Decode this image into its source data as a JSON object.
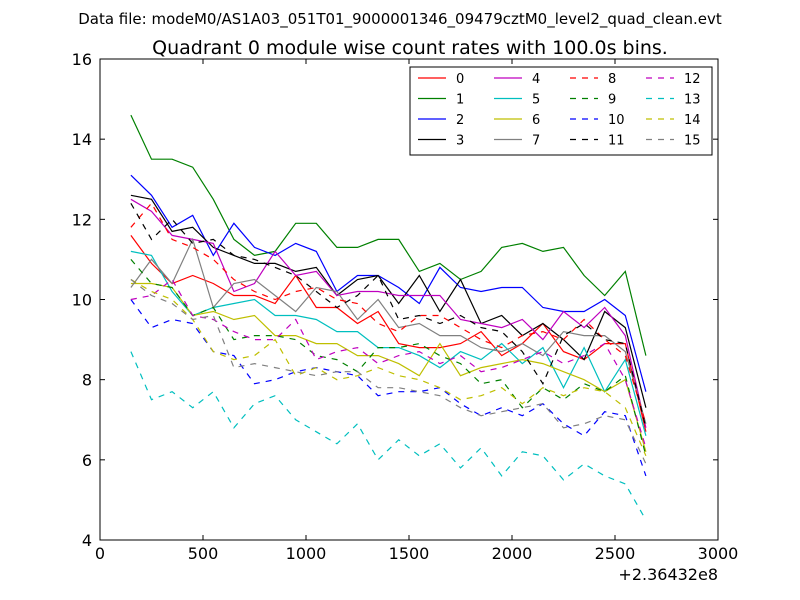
{
  "figure": {
    "suptitle": "Data file: modeM0/AS1A03_051T01_9000001346_09479cztM0_level2_quad_clean.evt"
  },
  "chart_data": {
    "type": "line",
    "title": "Quadrant 0 module wise count rates with 100.0s bins.",
    "xlabel": "",
    "ylabel": "",
    "x_offset_label": "+2.36432e8",
    "xlim": [
      0,
      3000
    ],
    "ylim": [
      4,
      16
    ],
    "xticks": [
      0,
      500,
      1000,
      1500,
      2000,
      2500,
      3000
    ],
    "yticks": [
      4,
      6,
      8,
      10,
      12,
      14,
      16
    ],
    "grid": false,
    "legend_position": "top-right",
    "x": [
      150,
      250,
      350,
      450,
      550,
      650,
      750,
      850,
      950,
      1050,
      1150,
      1250,
      1350,
      1450,
      1550,
      1650,
      1750,
      1850,
      1950,
      2050,
      2150,
      2250,
      2350,
      2450,
      2550,
      2650
    ],
    "series": [
      {
        "name": "0",
        "color": "#ff0000",
        "dash": "solid",
        "values": [
          11.6,
          10.9,
          10.4,
          10.6,
          10.4,
          10.1,
          10.1,
          9.9,
          10.6,
          9.8,
          9.8,
          9.4,
          9.7,
          8.9,
          8.8,
          8.8,
          8.9,
          9.2,
          8.6,
          8.9,
          9.4,
          8.7,
          8.5,
          8.9,
          8.9,
          6.7
        ]
      },
      {
        "name": "1",
        "color": "#008000",
        "dash": "solid",
        "values": [
          14.6,
          13.5,
          13.5,
          13.3,
          12.5,
          11.5,
          11.1,
          11.2,
          11.9,
          11.9,
          11.3,
          11.3,
          11.5,
          11.5,
          10.7,
          10.9,
          10.5,
          10.7,
          11.3,
          11.4,
          11.2,
          11.3,
          10.6,
          10.1,
          10.7,
          8.6
        ]
      },
      {
        "name": "2",
        "color": "#0000ff",
        "dash": "solid",
        "values": [
          13.1,
          12.6,
          11.8,
          12.1,
          11.1,
          11.9,
          11.3,
          11.1,
          11.4,
          11.2,
          10.2,
          10.6,
          10.6,
          10.3,
          9.9,
          10.8,
          10.3,
          10.2,
          10.3,
          10.3,
          9.8,
          9.7,
          9.7,
          10.0,
          9.6,
          7.7
        ]
      },
      {
        "name": "3",
        "color": "#000000",
        "dash": "solid",
        "values": [
          12.6,
          12.5,
          11.7,
          11.8,
          11.3,
          11.1,
          10.9,
          10.9,
          10.7,
          10.8,
          10.1,
          10.5,
          10.6,
          9.9,
          10.6,
          9.7,
          10.5,
          9.4,
          9.6,
          9.1,
          9.4,
          9.0,
          8.5,
          9.7,
          9.3,
          7.3
        ]
      },
      {
        "name": "4",
        "color": "#bf00bf",
        "dash": "solid",
        "values": [
          12.5,
          12.2,
          11.6,
          11.5,
          11.4,
          10.2,
          10.4,
          11.2,
          10.6,
          10.7,
          10.1,
          10.2,
          10.2,
          10.1,
          10.1,
          10.1,
          9.5,
          9.4,
          9.3,
          9.5,
          9.0,
          9.7,
          9.3,
          9.8,
          9.1,
          6.8
        ]
      },
      {
        "name": "5",
        "color": "#00bfbf",
        "dash": "solid",
        "values": [
          11.2,
          11.1,
          10.2,
          9.6,
          9.8,
          9.9,
          10.0,
          9.6,
          9.6,
          9.5,
          9.2,
          9.2,
          8.8,
          8.8,
          8.6,
          8.3,
          8.7,
          8.5,
          8.9,
          8.4,
          8.8,
          7.8,
          8.8,
          7.7,
          8.5,
          6.6
        ]
      },
      {
        "name": "6",
        "color": "#bfbf00",
        "dash": "solid",
        "values": [
          10.4,
          10.4,
          10.3,
          9.6,
          9.7,
          9.5,
          9.6,
          9.1,
          9.1,
          8.9,
          8.9,
          8.6,
          8.6,
          8.4,
          8.1,
          8.9,
          8.1,
          8.3,
          8.4,
          8.5,
          8.4,
          8.2,
          8.0,
          7.7,
          8.0,
          6.2
        ]
      },
      {
        "name": "7",
        "color": "#808080",
        "dash": "solid",
        "values": [
          10.3,
          11.0,
          10.4,
          11.5,
          9.8,
          10.4,
          10.5,
          10.1,
          9.7,
          10.3,
          10.2,
          9.5,
          10.0,
          9.3,
          9.4,
          9.1,
          9.1,
          8.8,
          8.7,
          8.9,
          8.6,
          9.2,
          9.1,
          9.1,
          8.7,
          6.9
        ]
      },
      {
        "name": "8",
        "color": "#ff0000",
        "dash": "dashed",
        "values": [
          11.8,
          12.4,
          11.5,
          11.3,
          11.0,
          10.5,
          10.2,
          10.0,
          10.2,
          10.3,
          10.0,
          9.9,
          9.4,
          9.2,
          9.6,
          9.6,
          9.3,
          9.0,
          8.8,
          9.1,
          9.2,
          9.0,
          9.5,
          9.0,
          8.6,
          6.9
        ]
      },
      {
        "name": "9",
        "color": "#008000",
        "dash": "dashed",
        "values": [
          11.0,
          10.4,
          10.3,
          9.6,
          9.8,
          9.0,
          9.1,
          9.1,
          9.0,
          8.6,
          8.5,
          8.2,
          8.8,
          8.8,
          8.9,
          8.6,
          8.4,
          7.9,
          8.0,
          7.3,
          7.8,
          7.5,
          7.9,
          7.7,
          8.1,
          6.1
        ]
      },
      {
        "name": "10",
        "color": "#0000ff",
        "dash": "dashed",
        "values": [
          10.0,
          9.3,
          9.5,
          9.4,
          8.7,
          8.6,
          7.9,
          8.0,
          8.2,
          8.3,
          8.2,
          8.1,
          7.6,
          7.7,
          7.7,
          7.8,
          7.4,
          7.1,
          7.3,
          7.1,
          7.4,
          6.9,
          6.6,
          7.2,
          7.1,
          5.6
        ]
      },
      {
        "name": "11",
        "color": "#000000",
        "dash": "dashed",
        "values": [
          12.4,
          11.5,
          12.0,
          11.4,
          11.5,
          11.1,
          11.0,
          10.8,
          10.6,
          10.2,
          9.8,
          10.1,
          10.6,
          9.5,
          9.6,
          9.4,
          9.6,
          9.3,
          9.2,
          8.7,
          7.9,
          9.1,
          9.4,
          9.0,
          8.9,
          6.8
        ]
      },
      {
        "name": "12",
        "color": "#bf00bf",
        "dash": "dashed",
        "values": [
          10.0,
          10.1,
          10.5,
          9.6,
          9.5,
          9.2,
          9.0,
          9.0,
          9.5,
          8.5,
          8.7,
          8.8,
          8.4,
          8.6,
          8.7,
          8.4,
          8.6,
          8.2,
          8.3,
          8.5,
          8.7,
          8.4,
          8.6,
          8.9,
          8.0,
          6.3
        ]
      },
      {
        "name": "13",
        "color": "#00bfbf",
        "dash": "dashed",
        "values": [
          8.7,
          7.5,
          7.7,
          7.3,
          7.7,
          6.8,
          7.4,
          7.6,
          7.0,
          6.7,
          6.4,
          6.9,
          6.0,
          6.5,
          6.1,
          6.4,
          5.8,
          6.3,
          5.6,
          6.2,
          6.1,
          5.5,
          5.9,
          5.6,
          5.4,
          4.5
        ]
      },
      {
        "name": "14",
        "color": "#bfbf00",
        "dash": "dashed",
        "values": [
          10.5,
          10.2,
          10.0,
          9.5,
          8.7,
          8.5,
          8.6,
          9.0,
          8.1,
          8.3,
          8.0,
          8.1,
          8.3,
          8.1,
          8.0,
          7.8,
          7.5,
          7.6,
          7.8,
          7.4,
          7.8,
          7.6,
          7.8,
          7.7,
          7.3,
          6.1
        ]
      },
      {
        "name": "15",
        "color": "#808080",
        "dash": "dashed",
        "values": [
          10.5,
          10.1,
          9.9,
          9.5,
          9.6,
          8.3,
          8.4,
          8.3,
          8.2,
          8.1,
          8.2,
          8.2,
          7.8,
          7.8,
          7.7,
          7.6,
          7.3,
          7.1,
          7.2,
          7.3,
          7.4,
          6.8,
          6.9,
          7.1,
          7.0,
          5.9
        ]
      }
    ]
  }
}
